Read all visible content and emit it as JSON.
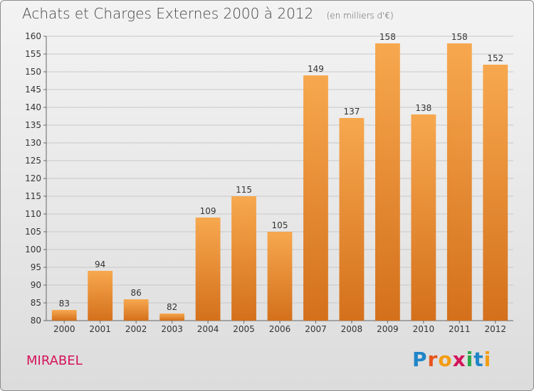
{
  "header": {
    "title": "Achats et Charges Externes 2000 à 2012",
    "unit": "(en milliers d'€)"
  },
  "footer": {
    "location": "MIRABEL",
    "logo": "Proxiti",
    "logo_colors": [
      "#1f86c8",
      "#e8541b",
      "#f39c12",
      "#d4145a",
      "#2aa84a",
      "#1f86c8",
      "#f39c12"
    ]
  },
  "colors": {
    "bar_top": "#f7a84f",
    "bar_bottom": "#d4701c",
    "grid": "#c8c8c8",
    "axis": "#666666",
    "label": "#333333"
  },
  "chart_data": {
    "type": "bar",
    "categories": [
      "2000",
      "2001",
      "2002",
      "2003",
      "2004",
      "2005",
      "2006",
      "2007",
      "2008",
      "2009",
      "2010",
      "2011",
      "2012"
    ],
    "values": [
      83,
      94,
      86,
      82,
      109,
      115,
      105,
      149,
      137,
      158,
      138,
      158,
      152
    ],
    "title": "Achats et Charges Externes 2000 à 2012",
    "xlabel": "",
    "ylabel": "",
    "ylim": [
      80,
      160
    ],
    "yticks": [
      80,
      85,
      90,
      95,
      100,
      105,
      110,
      115,
      120,
      125,
      130,
      135,
      140,
      145,
      150,
      155,
      160
    ],
    "grid": true,
    "legend": "none"
  }
}
